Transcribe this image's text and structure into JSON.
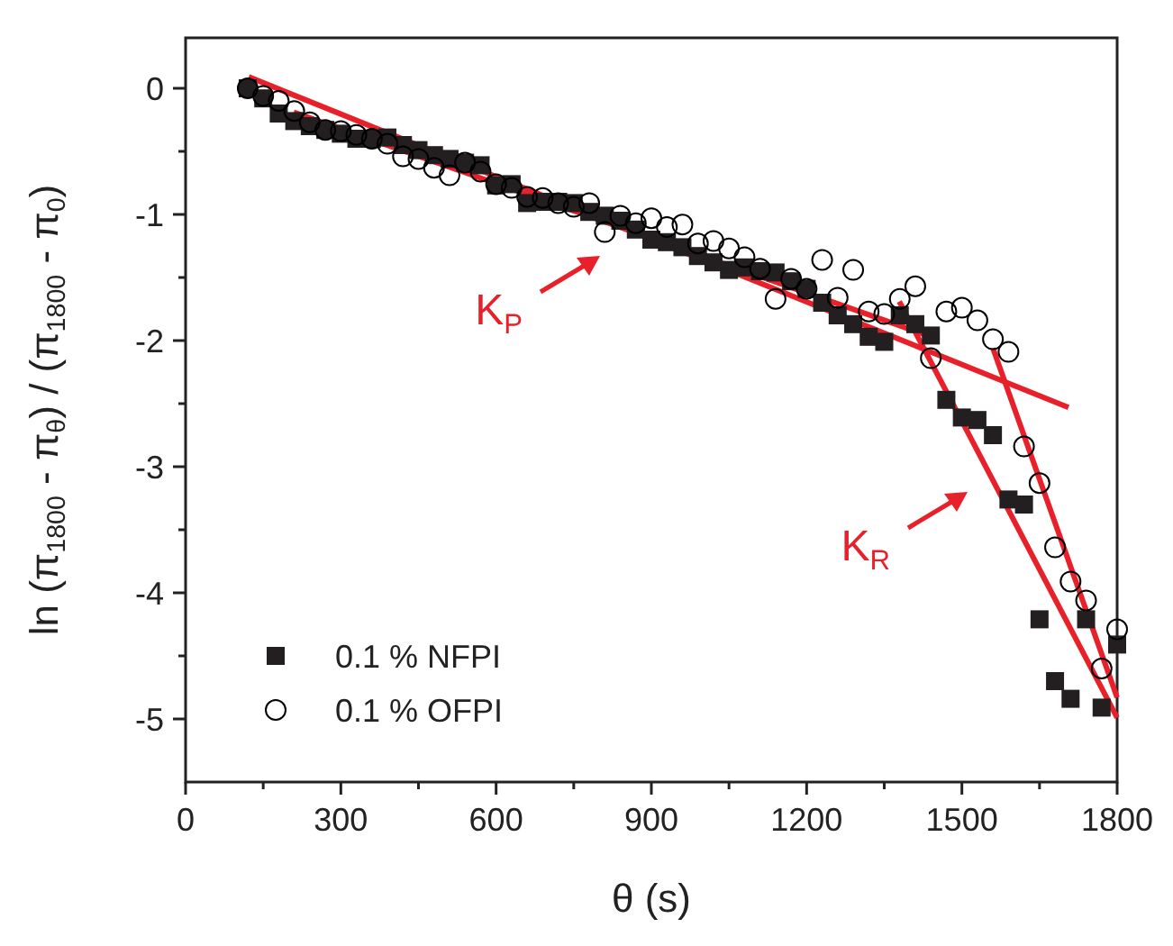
{
  "chart_data": {
    "type": "scatter",
    "xlabel": "θ (s)",
    "ylabel": "ln (π$_{1800}$ - π$_{θ}$) / (π$_{1800}$ - π$_{0}$)",
    "x": [
      120,
      150,
      180,
      210,
      240,
      270,
      300,
      330,
      360,
      390,
      420,
      450,
      480,
      510,
      540,
      570,
      600,
      630,
      660,
      690,
      720,
      750,
      780,
      810,
      840,
      870,
      900,
      930,
      960,
      990,
      1020,
      1050,
      1080,
      1110,
      1140,
      1170,
      1200,
      1230,
      1260,
      1290,
      1320,
      1350,
      1380,
      1410,
      1440,
      1470,
      1500,
      1530,
      1560,
      1590,
      1620,
      1650,
      1680,
      1710,
      1740,
      1770,
      1800
    ],
    "series": [
      {
        "name": "0.1 % NFPI",
        "color": "#231f20",
        "marker": "square",
        "values": [
          0,
          -0.08,
          -0.2,
          -0.26,
          -0.3,
          -0.33,
          -0.36,
          -0.4,
          -0.4,
          -0.39,
          -0.45,
          -0.49,
          -0.53,
          -0.56,
          -0.59,
          -0.61,
          -0.77,
          -0.76,
          -0.91,
          -0.9,
          -0.9,
          -0.91,
          -0.98,
          -1.01,
          -1.05,
          -1.12,
          -1.2,
          -1.22,
          -1.26,
          -1.33,
          -1.38,
          -1.44,
          -1.42,
          -1.45,
          -1.46,
          -1.53,
          -1.59,
          -1.7,
          -1.8,
          -1.87,
          -1.97,
          -2.01,
          -1.8,
          -1.87,
          -1.96,
          -2.47,
          -2.61,
          -2.63,
          -2.75,
          -3.26,
          -3.3,
          -4.21,
          -4.7,
          -4.84,
          -4.21,
          -4.91,
          -4.41
        ]
      },
      {
        "name": "0.1 % OFPI",
        "color": "#000000",
        "marker": "circle",
        "values": [
          0,
          -0.06,
          -0.1,
          -0.18,
          -0.27,
          -0.33,
          -0.34,
          -0.37,
          -0.4,
          -0.44,
          -0.54,
          -0.56,
          -0.63,
          -0.69,
          -0.59,
          -0.66,
          -0.76,
          -0.79,
          -0.86,
          -0.87,
          -0.91,
          -0.94,
          -0.91,
          -1.14,
          -1.01,
          -1.07,
          -1.03,
          -1.1,
          -1.08,
          -1.23,
          -1.21,
          -1.27,
          -1.34,
          -1.43,
          -1.67,
          -1.51,
          -1.59,
          -1.36,
          -1.66,
          -1.44,
          -1.77,
          -1.79,
          -1.67,
          -1.57,
          -2.14,
          -1.77,
          -1.74,
          -1.84,
          -1.99,
          -2.09,
          -2.84,
          -3.13,
          -3.64,
          -3.91,
          -4.06,
          -4.6,
          -4.29
        ]
      },
      {
        "type": "line",
        "color": "#e8202a",
        "x": [
          122,
          1706
        ],
        "values": [
          0.09,
          -2.53
        ]
      },
      {
        "type": "line",
        "color": "#e8202a",
        "x": [
          209,
          1441
        ],
        "values": [
          -0.19,
          -1.97
        ]
      },
      {
        "type": "line",
        "color": "#e8202a",
        "x": [
          1379,
          1800
        ],
        "values": [
          -1.69,
          -4.99
        ]
      },
      {
        "type": "line",
        "color": "#e8202a",
        "x": [
          1560,
          1800
        ],
        "values": [
          -2.06,
          -4.83
        ]
      }
    ],
    "annotations": [
      "K$_{P}$",
      "K$_{R}$"
    ],
    "xlim": [
      0,
      1800
    ],
    "ylim": [
      -5.5,
      0.4
    ],
    "xticks": [
      0,
      {
        "value": 150,
        "label": null
      },
      300,
      {
        "value": 450,
        "label": null
      },
      600,
      {
        "value": 750,
        "label": null
      },
      900,
      {
        "value": 1050,
        "label": null
      },
      1200,
      {
        "value": 1350,
        "label": null
      },
      1500,
      {
        "value": 1650,
        "label": null
      },
      1800
    ],
    "yticks": [
      0,
      {
        "value": -0.5,
        "label": null
      },
      -1,
      {
        "value": -1.5,
        "label": null
      },
      -2,
      {
        "value": -2.5,
        "label": null
      },
      -3,
      {
        "value": -3.5,
        "label": null
      },
      -4,
      {
        "value": -4.5,
        "label": null
      },
      -5
    ],
    "legend": "bottom left",
    "grid": false
  }
}
